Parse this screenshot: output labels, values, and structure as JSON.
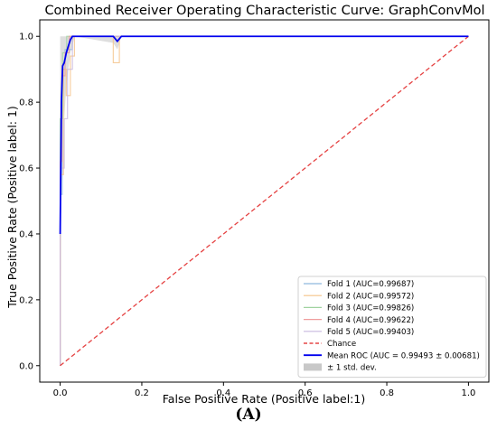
{
  "chart_data": {
    "type": "line",
    "title": "Combined Receiver Operating Characteristic Curve: GraphConvMol",
    "xlabel": "False Positive Rate (Positive label:1)",
    "ylabel": "True Positive Rate (Positive label: 1)",
    "xlim": [
      -0.05,
      1.05
    ],
    "ylim": [
      -0.05,
      1.05
    ],
    "xticks": [
      "0.0",
      "0.2",
      "0.4",
      "0.6",
      "0.8",
      "1.0"
    ],
    "yticks": [
      "0.0",
      "0.2",
      "0.4",
      "0.6",
      "0.8",
      "1.0"
    ],
    "grid": false,
    "legend_position": "lower-right",
    "series": [
      {
        "name": "Fold 1 (AUC=0.99687)",
        "color": "#8fb9dd",
        "style": "solid",
        "x": [
          0,
          0,
          0.005,
          0.005,
          0.012,
          0.012,
          0.02,
          0.02,
          0.03,
          0.03,
          1
        ],
        "y": [
          0,
          0.52,
          0.52,
          0.9,
          0.9,
          0.96,
          0.96,
          0.96,
          0.96,
          1.0,
          1.0
        ]
      },
      {
        "name": "Fold 2 (AUC=0.99572)",
        "color": "#f5c389",
        "style": "solid",
        "x": [
          0,
          0,
          0.008,
          0.008,
          0.015,
          0.015,
          0.025,
          0.025,
          0.035,
          0.035,
          0.13,
          0.13,
          0.145,
          0.145,
          1
        ],
        "y": [
          0,
          0.58,
          0.58,
          0.9,
          0.9,
          0.82,
          0.82,
          0.94,
          0.94,
          1.0,
          1.0,
          0.92,
          0.92,
          1.0,
          1.0
        ]
      },
      {
        "name": "Fold 3 (AUC=0.99826)",
        "color": "#9fd39f",
        "style": "solid",
        "x": [
          0,
          0,
          0.006,
          0.006,
          0.016,
          0.016,
          1
        ],
        "y": [
          0,
          0.75,
          0.75,
          0.95,
          0.95,
          1.0,
          1.0
        ]
      },
      {
        "name": "Fold 4 (AUC=0.99622)",
        "color": "#ef9d9d",
        "style": "solid",
        "x": [
          0,
          0,
          0.004,
          0.004,
          0.012,
          0.012,
          0.022,
          0.022,
          1
        ],
        "y": [
          0,
          0.62,
          0.62,
          0.88,
          0.88,
          0.95,
          0.95,
          1.0,
          1.0
        ]
      },
      {
        "name": "Fold 5 (AUC=0.99403)",
        "color": "#c9b8df",
        "style": "solid",
        "x": [
          0,
          0,
          0.01,
          0.01,
          0.018,
          0.018,
          0.03,
          0.03,
          1
        ],
        "y": [
          0,
          0.6,
          0.6,
          0.75,
          0.75,
          0.9,
          0.9,
          1.0,
          1.0
        ]
      },
      {
        "name": "Chance",
        "color": "#e02020",
        "style": "dashed",
        "x": [
          0,
          1
        ],
        "y": [
          0,
          1
        ]
      },
      {
        "name": "Mean ROC (AUC = 0.99493 ± 0.00681)",
        "color": "#0000ee",
        "style": "solid",
        "x": [
          0,
          0.003,
          0.006,
          0.01,
          0.015,
          0.02,
          0.025,
          0.03,
          0.035,
          0.13,
          0.14,
          0.15,
          1
        ],
        "y": [
          0.4,
          0.8,
          0.91,
          0.92,
          0.95,
          0.97,
          0.99,
          1.0,
          1.0,
          1.0,
          0.985,
          1.0,
          1.0
        ]
      }
    ],
    "band": {
      "name": "± 1 std. dev.",
      "color": "#c8c8c8",
      "x": [
        0,
        0.003,
        0.006,
        0.01,
        0.015,
        0.02,
        0.025,
        0.03,
        0.035,
        0.13,
        0.14,
        0.15,
        1
      ],
      "lower": [
        0.0,
        0.65,
        0.85,
        0.75,
        0.85,
        0.9,
        0.95,
        0.97,
        1.0,
        0.98,
        0.96,
        1.0,
        1.0
      ],
      "upper": [
        1.0,
        1.0,
        1.0,
        1.0,
        1.0,
        1.0,
        1.0,
        1.0,
        1.0,
        1.0,
        1.0,
        1.0,
        1.0
      ]
    }
  },
  "caption": "(A)"
}
